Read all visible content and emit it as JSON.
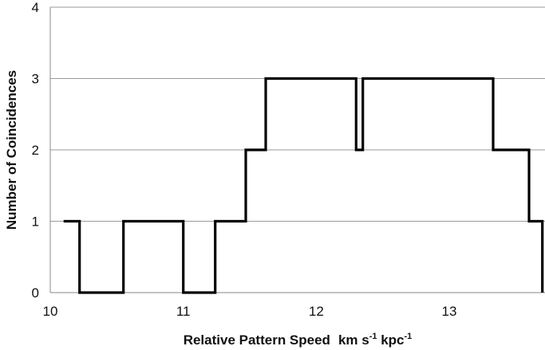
{
  "chart_data": {
    "type": "line",
    "style": "step",
    "xlabel_main": "Relative Pattern Speed",
    "xlabel_units": [
      {
        "base": "km s",
        "sup": "-1"
      },
      {
        "base": " kpc",
        "sup": "-1"
      }
    ],
    "ylabel": "Number of Coincidences",
    "xlim": [
      10,
      13.72
    ],
    "ylim": [
      0,
      4
    ],
    "x_ticks": [
      "10",
      "11",
      "12",
      "13"
    ],
    "y_ticks": [
      "0",
      "1",
      "2",
      "3",
      "4"
    ],
    "grid": "horizontal",
    "series": [
      {
        "x": [
          10.1,
          10.22,
          10.22,
          10.55,
          10.55,
          11.0,
          11.0,
          11.24,
          11.24,
          11.47,
          11.47,
          11.62,
          11.62,
          12.3,
          12.3,
          12.35,
          12.35,
          13.33,
          13.33,
          13.6,
          13.6,
          13.7,
          13.7
        ],
        "y": [
          1,
          1,
          0,
          0,
          1,
          1,
          0,
          0,
          1,
          1,
          2,
          2,
          3,
          3,
          2,
          2,
          3,
          3,
          2,
          2,
          1,
          1,
          0
        ]
      }
    ]
  }
}
